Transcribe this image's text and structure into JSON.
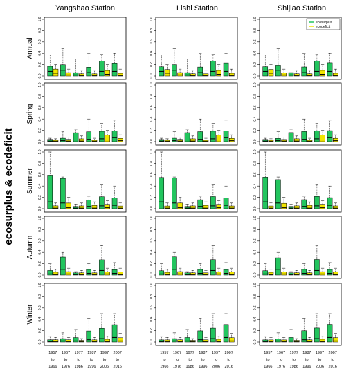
{
  "chart_data": {
    "type": "boxplot",
    "ylabel": "ecosurplus & ecodeficit",
    "legend": {
      "position": "top-right of Shijiao Station / Annual panel",
      "entries": [
        {
          "name": "ecosurplus",
          "color": "#22c55e"
        },
        {
          "name": "ecodeficit",
          "color": "#f2e600"
        }
      ]
    },
    "stations": [
      "Yangshao Station",
      "Lishi Station",
      "Shijiao Station"
    ],
    "seasons": [
      "Annual",
      "Spring",
      "Summer",
      "Autumn",
      "Winter"
    ],
    "periods": [
      [
        "1957",
        "to",
        "1966"
      ],
      [
        "1967",
        "to",
        "1976"
      ],
      [
        "1977",
        "to",
        "1986"
      ],
      [
        "1987",
        "to",
        "1996"
      ],
      [
        "1997",
        "to",
        "2006"
      ],
      [
        "2007",
        "to",
        "2016"
      ]
    ],
    "ylim": [
      0,
      1
    ],
    "yticks": [
      "0.0",
      "0.2",
      "0.4",
      "0.6",
      "0.8",
      "1.0"
    ],
    "colors": {
      "surplus": "#22c55e",
      "deficit": "#f2e600"
    },
    "panels": [
      [
        {
          "surplus": [
            0.17,
            0.08,
            0.37
          ],
          "deficit": [
            0.12,
            0.05,
            0.2
          ]
        },
        {
          "surplus": [
            0.2,
            0.1,
            0.48
          ],
          "deficit": [
            0.06,
            0.02,
            0.12
          ]
        },
        {
          "surplus": [
            0.06,
            0.02,
            0.3
          ],
          "deficit": [
            0.04,
            0.01,
            0.1
          ]
        },
        {
          "surplus": [
            0.16,
            0.06,
            0.4
          ],
          "deficit": [
            0.04,
            0.01,
            0.1
          ]
        },
        {
          "surplus": [
            0.27,
            0.08,
            0.38
          ],
          "deficit": [
            0.1,
            0.03,
            0.2
          ]
        },
        {
          "surplus": [
            0.24,
            0.08,
            0.4
          ],
          "deficit": [
            0.05,
            0.01,
            0.12
          ]
        }
      ],
      [
        {
          "surplus": [
            0.04,
            0.01,
            0.06
          ],
          "deficit": [
            0.03,
            0.01,
            0.05
          ]
        },
        {
          "surplus": [
            0.06,
            0.02,
            0.18
          ],
          "deficit": [
            0.04,
            0.01,
            0.08
          ]
        },
        {
          "surplus": [
            0.16,
            0.03,
            0.22
          ],
          "deficit": [
            0.05,
            0.01,
            0.1
          ]
        },
        {
          "surplus": [
            0.18,
            0.04,
            0.4
          ],
          "deficit": [
            0.03,
            0.01,
            0.06
          ]
        },
        {
          "surplus": [
            0.19,
            0.05,
            0.32
          ],
          "deficit": [
            0.12,
            0.03,
            0.2
          ]
        },
        {
          "surplus": [
            0.2,
            0.07,
            0.38
          ],
          "deficit": [
            0.06,
            0.02,
            0.12
          ]
        }
      ],
      [
        {
          "surplus": [
            0.58,
            0.12,
            1.0
          ],
          "deficit": [
            0.05,
            0.01,
            0.1
          ]
        },
        {
          "surplus": [
            0.54,
            0.1,
            0.56
          ],
          "deficit": [
            0.1,
            0.02,
            0.2
          ]
        },
        {
          "surplus": [
            0.04,
            0.01,
            0.08
          ],
          "deficit": [
            0.05,
            0.01,
            0.1
          ]
        },
        {
          "surplus": [
            0.16,
            0.04,
            0.22
          ],
          "deficit": [
            0.06,
            0.01,
            0.12
          ]
        },
        {
          "surplus": [
            0.22,
            0.05,
            0.42
          ],
          "deficit": [
            0.08,
            0.02,
            0.14
          ]
        },
        {
          "surplus": [
            0.2,
            0.06,
            0.4
          ],
          "deficit": [
            0.05,
            0.01,
            0.1
          ]
        }
      ],
      [
        {
          "surplus": [
            0.08,
            0.02,
            0.2
          ],
          "deficit": [
            0.05,
            0.01,
            0.1
          ]
        },
        {
          "surplus": [
            0.32,
            0.1,
            0.4
          ],
          "deficit": [
            0.06,
            0.02,
            0.12
          ]
        },
        {
          "surplus": [
            0.04,
            0.01,
            0.06
          ],
          "deficit": [
            0.04,
            0.01,
            0.08
          ]
        },
        {
          "surplus": [
            0.1,
            0.03,
            0.2
          ],
          "deficit": [
            0.04,
            0.01,
            0.08
          ]
        },
        {
          "surplus": [
            0.28,
            0.08,
            0.52
          ],
          "deficit": [
            0.06,
            0.02,
            0.12
          ]
        },
        {
          "surplus": [
            0.1,
            0.03,
            0.22
          ],
          "deficit": [
            0.06,
            0.01,
            0.12
          ]
        }
      ],
      [
        {
          "surplus": [
            0.04,
            0.01,
            0.1
          ],
          "deficit": [
            0.04,
            0.01,
            0.08
          ]
        },
        {
          "surplus": [
            0.06,
            0.02,
            0.16
          ],
          "deficit": [
            0.04,
            0.01,
            0.08
          ]
        },
        {
          "surplus": [
            0.08,
            0.02,
            0.22
          ],
          "deficit": [
            0.03,
            0.01,
            0.06
          ]
        },
        {
          "surplus": [
            0.2,
            0.04,
            0.42
          ],
          "deficit": [
            0.04,
            0.01,
            0.08
          ]
        },
        {
          "surplus": [
            0.25,
            0.06,
            0.5
          ],
          "deficit": [
            0.05,
            0.01,
            0.1
          ]
        },
        {
          "surplus": [
            0.32,
            0.08,
            0.5
          ],
          "deficit": [
            0.08,
            0.02,
            0.15
          ]
        }
      ]
    ]
  }
}
